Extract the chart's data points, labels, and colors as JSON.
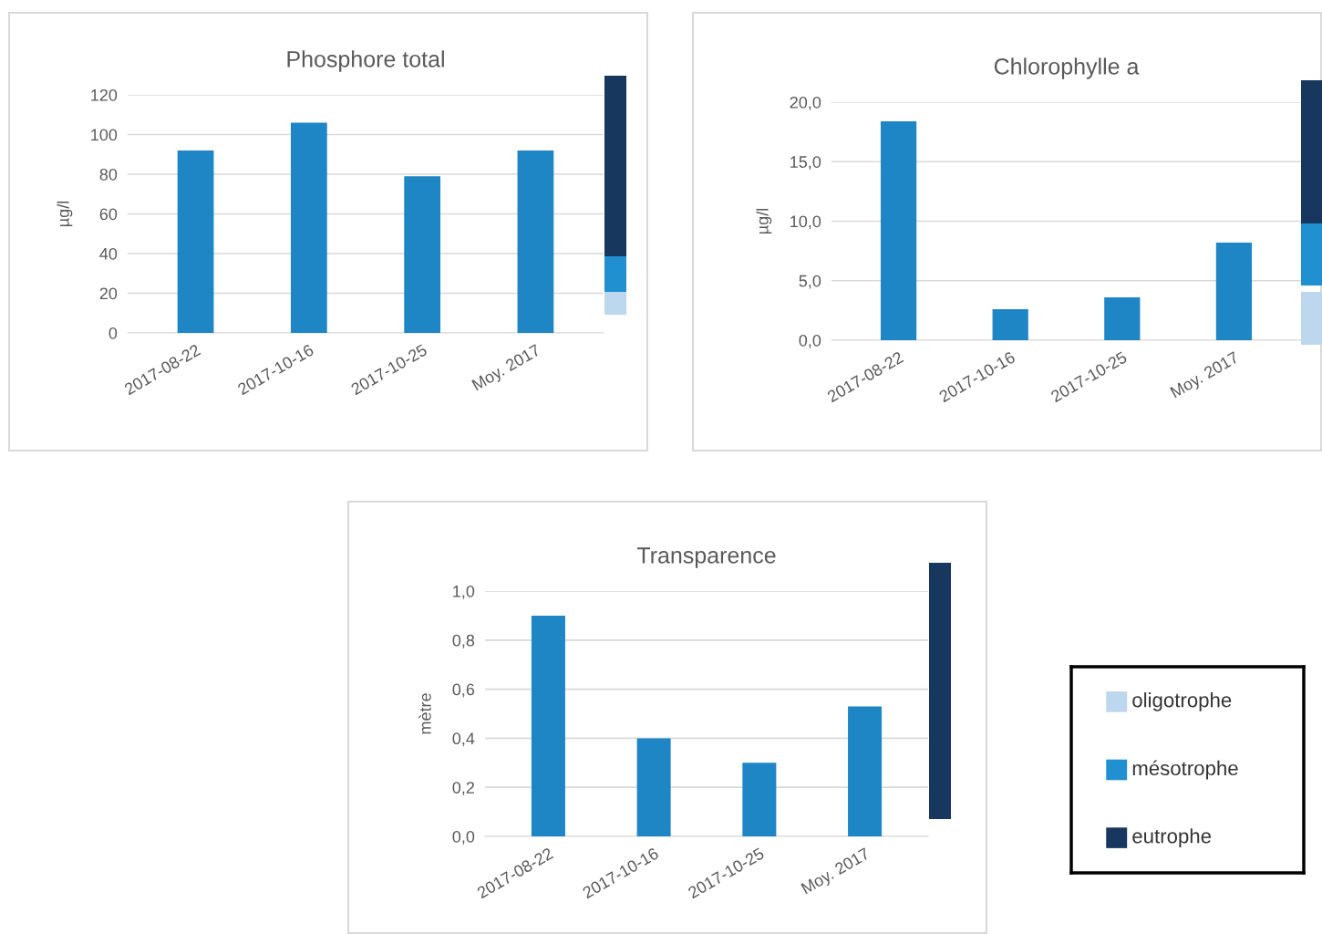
{
  "chart_data": [
    {
      "type": "bar",
      "title": "Phosphore total",
      "ylabel": "µg/l",
      "categories": [
        "2017-08-22",
        "2017-10-16",
        "2017-10-25",
        "Moy. 2017"
      ],
      "values": [
        92,
        106,
        79,
        92
      ],
      "color": "#1f86c6",
      "ylim": [
        0,
        120
      ],
      "yticks": [
        0,
        20,
        40,
        60,
        80,
        100,
        120
      ],
      "grid": "y"
    },
    {
      "type": "bar",
      "title": "Chlorophylle a",
      "ylabel": "µg/l",
      "categories": [
        "2017-08-22",
        "2017-10-16",
        "2017-10-25",
        "Moy. 2017"
      ],
      "values": [
        18.4,
        2.6,
        3.6,
        8.2
      ],
      "color": "#1f86c6",
      "ylim": [
        0,
        20
      ],
      "yticks": [
        {
          "value": 0,
          "label": "0,0"
        },
        {
          "value": 5,
          "label": "5,0"
        },
        {
          "value": 10,
          "label": "10,0"
        },
        {
          "value": 15,
          "label": "15,0"
        },
        {
          "value": 20,
          "label": "20,0"
        }
      ],
      "grid": "y"
    },
    {
      "type": "bar",
      "title": "Transparence",
      "ylabel": "mètre",
      "categories": [
        "2017-08-22",
        "2017-10-16",
        "2017-10-25",
        "Moy. 2017"
      ],
      "values": [
        0.9,
        0.4,
        0.3,
        0.53
      ],
      "color": "#1f86c6",
      "ylim": [
        0,
        1
      ],
      "yticks": [
        {
          "value": 0,
          "label": "0,0"
        },
        {
          "value": 0.2,
          "label": "0,2"
        },
        {
          "value": 0.4,
          "label": "0,4"
        },
        {
          "value": 0.6,
          "label": "0,6"
        },
        {
          "value": 0.8,
          "label": "0,8"
        },
        {
          "value": 1,
          "label": "1,0"
        }
      ],
      "grid": "y"
    },
    {
      "type": "other",
      "categories": [
        "oligotrophe",
        "mésotrophe",
        "eutrophe"
      ],
      "colors": [
        "#bdd7ee",
        "#2190d0",
        "#17375e"
      ]
    }
  ]
}
